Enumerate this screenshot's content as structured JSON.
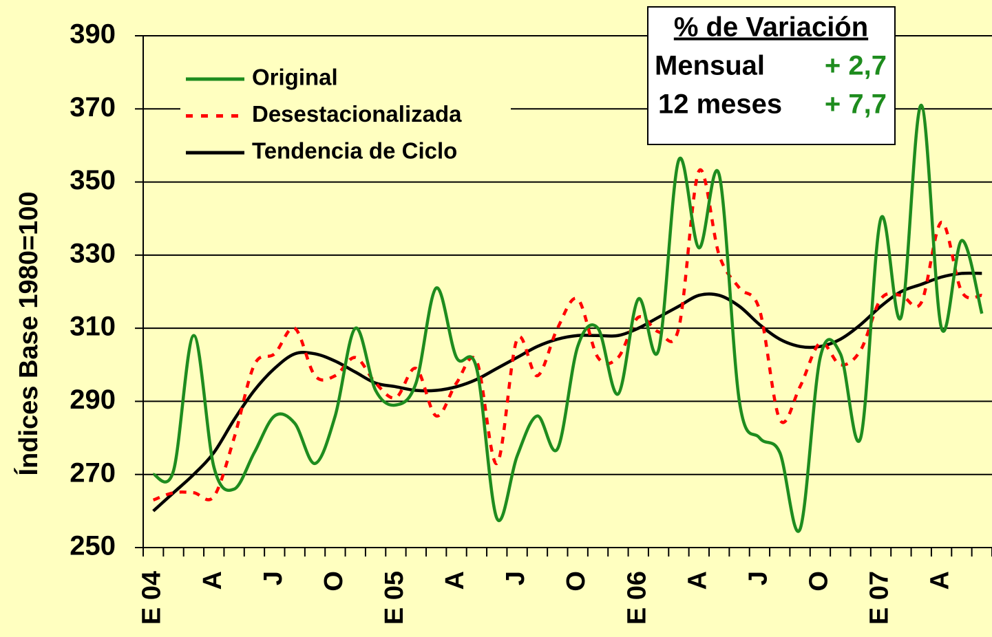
{
  "chart_data": {
    "type": "line",
    "y_label": "Índices Base 1980=100",
    "categories": [
      "E 04",
      null,
      null,
      "A",
      null,
      null,
      "J",
      null,
      null,
      "O",
      null,
      null,
      "E 05",
      null,
      null,
      "A",
      null,
      null,
      "J",
      null,
      null,
      "O",
      null,
      null,
      "E 06",
      null,
      null,
      "A",
      null,
      null,
      "J",
      null,
      null,
      "O",
      null,
      null,
      "E 07",
      null,
      null,
      "A",
      null,
      null
    ],
    "series": [
      {
        "name": "Original",
        "color": "#1e8c1e",
        "dash": false,
        "values": [
          270,
          271,
          308,
          272,
          266,
          276,
          286,
          284,
          273,
          286,
          310,
          293,
          289,
          295,
          321,
          302,
          299,
          258,
          275,
          286,
          277,
          305,
          310,
          292,
          318,
          304,
          356,
          332,
          352,
          290,
          280,
          276,
          255,
          302,
          303,
          280,
          340,
          313,
          371,
          310,
          334,
          314
        ]
      },
      {
        "name": "Desestacionalizada",
        "color": "#ff0000",
        "dash": true,
        "values": [
          263,
          265,
          265,
          264,
          280,
          300,
          303,
          310,
          297,
          297,
          302,
          295,
          291,
          299,
          286,
          295,
          301,
          273,
          307,
          297,
          310,
          318,
          302,
          302,
          313,
          309,
          310,
          353,
          330,
          321,
          315,
          285,
          294,
          306,
          300,
          304,
          318,
          319,
          317,
          339,
          320,
          319
        ]
      },
      {
        "name": "Tendencia de Ciclo",
        "color": "#000000",
        "dash": false,
        "values": [
          260,
          265,
          270,
          276,
          285,
          293,
          299,
          303,
          303,
          301,
          298,
          295,
          294,
          293,
          293,
          294,
          296,
          299,
          302,
          305,
          307,
          308,
          308,
          308,
          310,
          313,
          316,
          319,
          319,
          316,
          311,
          307,
          305,
          305,
          307,
          311,
          316,
          320,
          322,
          324,
          325,
          325
        ]
      }
    ],
    "ylim": [
      250,
      390
    ],
    "yticks": [
      250,
      270,
      290,
      310,
      330,
      350,
      370,
      390
    ],
    "grid": true,
    "legend": "top-left",
    "variation_box": {
      "title": "% de Variación",
      "rows": [
        [
          "Mensual",
          "+ 2,7"
        ],
        [
          "12 meses",
          "+ 7,7"
        ]
      ]
    }
  }
}
